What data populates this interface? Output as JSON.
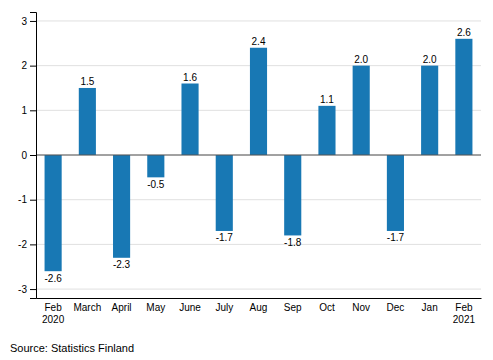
{
  "chart_data": {
    "type": "bar",
    "categories": [
      "Feb\n2020",
      "March",
      "April",
      "May",
      "June",
      "July",
      "Aug",
      "Sep",
      "Oct",
      "Nov",
      "Dec",
      "Jan",
      "Feb\n2021"
    ],
    "values": [
      -2.6,
      1.5,
      -2.3,
      -0.5,
      1.6,
      -1.7,
      2.4,
      -1.8,
      1.1,
      2.0,
      -1.7,
      2.0,
      2.6
    ],
    "value_labels": [
      "-2.6",
      "1.5",
      "-2.3",
      "-0.5",
      "1.6",
      "-1.7",
      "2.4",
      "-1.8",
      "1.1",
      "2.0",
      "-1.7",
      "2.0",
      "2.6"
    ],
    "color": "#1878b4",
    "ylim": [
      -3.2,
      3.2
    ],
    "yticks": [
      -3,
      -2,
      -1,
      0,
      1,
      2,
      3
    ],
    "grid": true,
    "data_labels": true,
    "source": "Source: Statistics Finland"
  }
}
